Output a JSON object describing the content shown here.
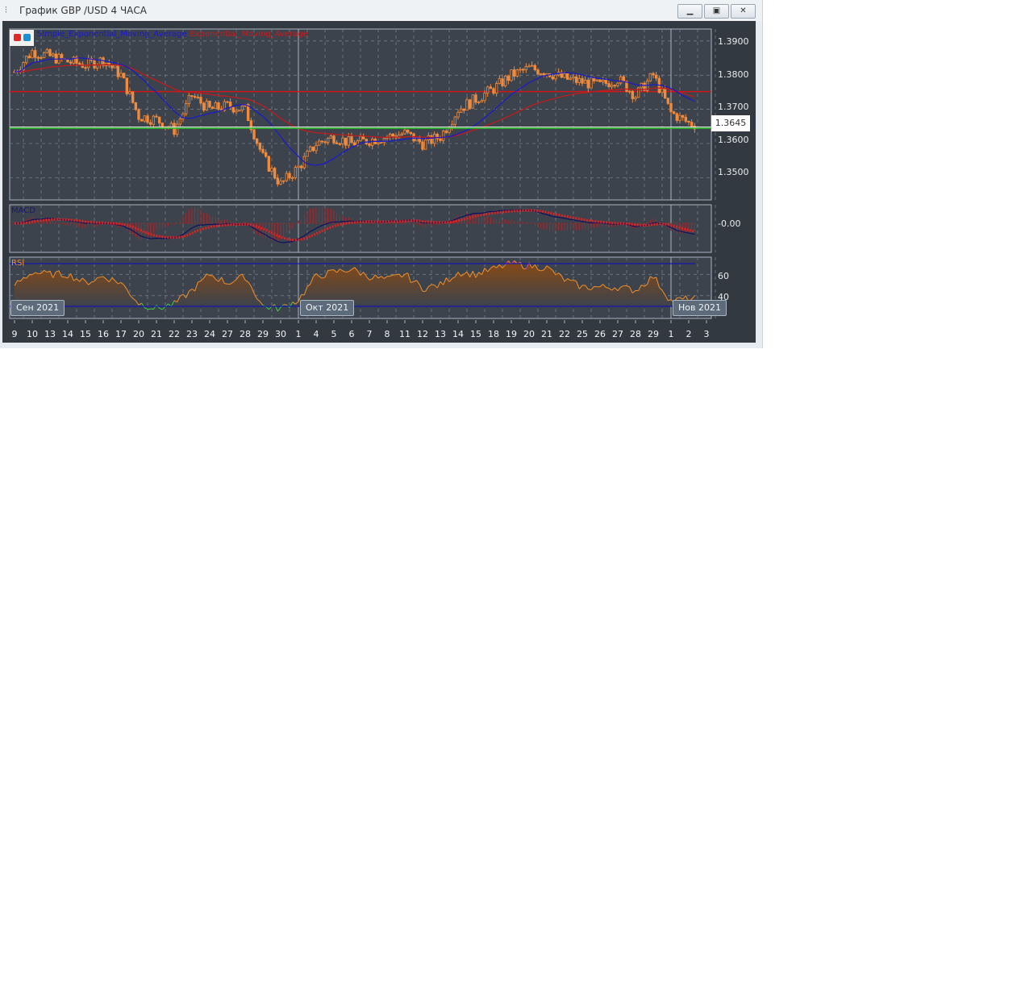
{
  "window": {
    "title": "График GBP /USD  4 ЧАСА",
    "minimize_label": "—",
    "maximize_label": "□",
    "close_label": "✕",
    "icon": "candlestick-chart-icon"
  },
  "legend": {
    "sma": "Simple_Exponential_Moving_Average",
    "sma_visible": "ential_Moving_Average",
    "ema": "Exponential_Moving_Average",
    "colors": {
      "sma": "#1a1acc",
      "ema": "#cc1a1a"
    }
  },
  "panels": {
    "macd_label": "MACD",
    "rsi_label": "RSI"
  },
  "chart_data": {
    "type": "candlestick",
    "symbol": "GBP/USD",
    "timeframe": "4 ЧАСА",
    "price_axis": {
      "ticks": [
        "1.3900",
        "1.3800",
        "1.3700",
        "1.3600",
        "1.3500"
      ],
      "ylim": [
        1.3435,
        1.3935
      ]
    },
    "current_price": "1.3645",
    "horizontal_lines": [
      {
        "value": 1.3752,
        "color": "#d01818"
      },
      {
        "value": 1.3645,
        "color": "#2ecc2e"
      }
    ],
    "x_labels": [
      "9",
      "10",
      "13",
      "14",
      "15",
      "16",
      "17",
      "20",
      "21",
      "22",
      "23",
      "24",
      "27",
      "28",
      "29",
      "30",
      "1",
      "4",
      "5",
      "6",
      "7",
      "8",
      "11",
      "12",
      "13",
      "14",
      "15",
      "18",
      "19",
      "20",
      "21",
      "22",
      "25",
      "26",
      "27",
      "28",
      "29",
      "1",
      "2",
      "3"
    ],
    "month_labels": [
      {
        "label": "Сен 2021",
        "at": "9"
      },
      {
        "label": "Окт 2021",
        "at": "1"
      },
      {
        "label": "Нов 2021",
        "at": "1"
      }
    ],
    "daily_close": [
      1.381,
      1.387,
      1.3855,
      1.384,
      1.383,
      1.3845,
      1.38,
      1.368,
      1.367,
      1.364,
      1.374,
      1.37,
      1.371,
      1.37,
      1.356,
      1.348,
      1.353,
      1.36,
      1.362,
      1.36,
      1.361,
      1.362,
      1.363,
      1.36,
      1.362,
      1.37,
      1.373,
      1.376,
      1.38,
      1.382,
      1.381,
      1.379,
      1.378,
      1.377,
      1.379,
      1.374,
      1.38,
      1.369,
      1.366,
      1.365
    ],
    "macd": {
      "axis_label": "-0.00",
      "colors": {
        "macd": "#101060",
        "signal": "#e02020"
      }
    },
    "rsi": {
      "ticks": [
        "60",
        "40"
      ],
      "levels": [
        70,
        30
      ],
      "daily": [
        50,
        62,
        60,
        60,
        52,
        58,
        52,
        33,
        28,
        32,
        45,
        60,
        52,
        58,
        30,
        28,
        36,
        58,
        62,
        65,
        58,
        55,
        60,
        47,
        50,
        62,
        60,
        65,
        70,
        68,
        66,
        55,
        48,
        48,
        48,
        45,
        58,
        35,
        37,
        37
      ]
    }
  }
}
